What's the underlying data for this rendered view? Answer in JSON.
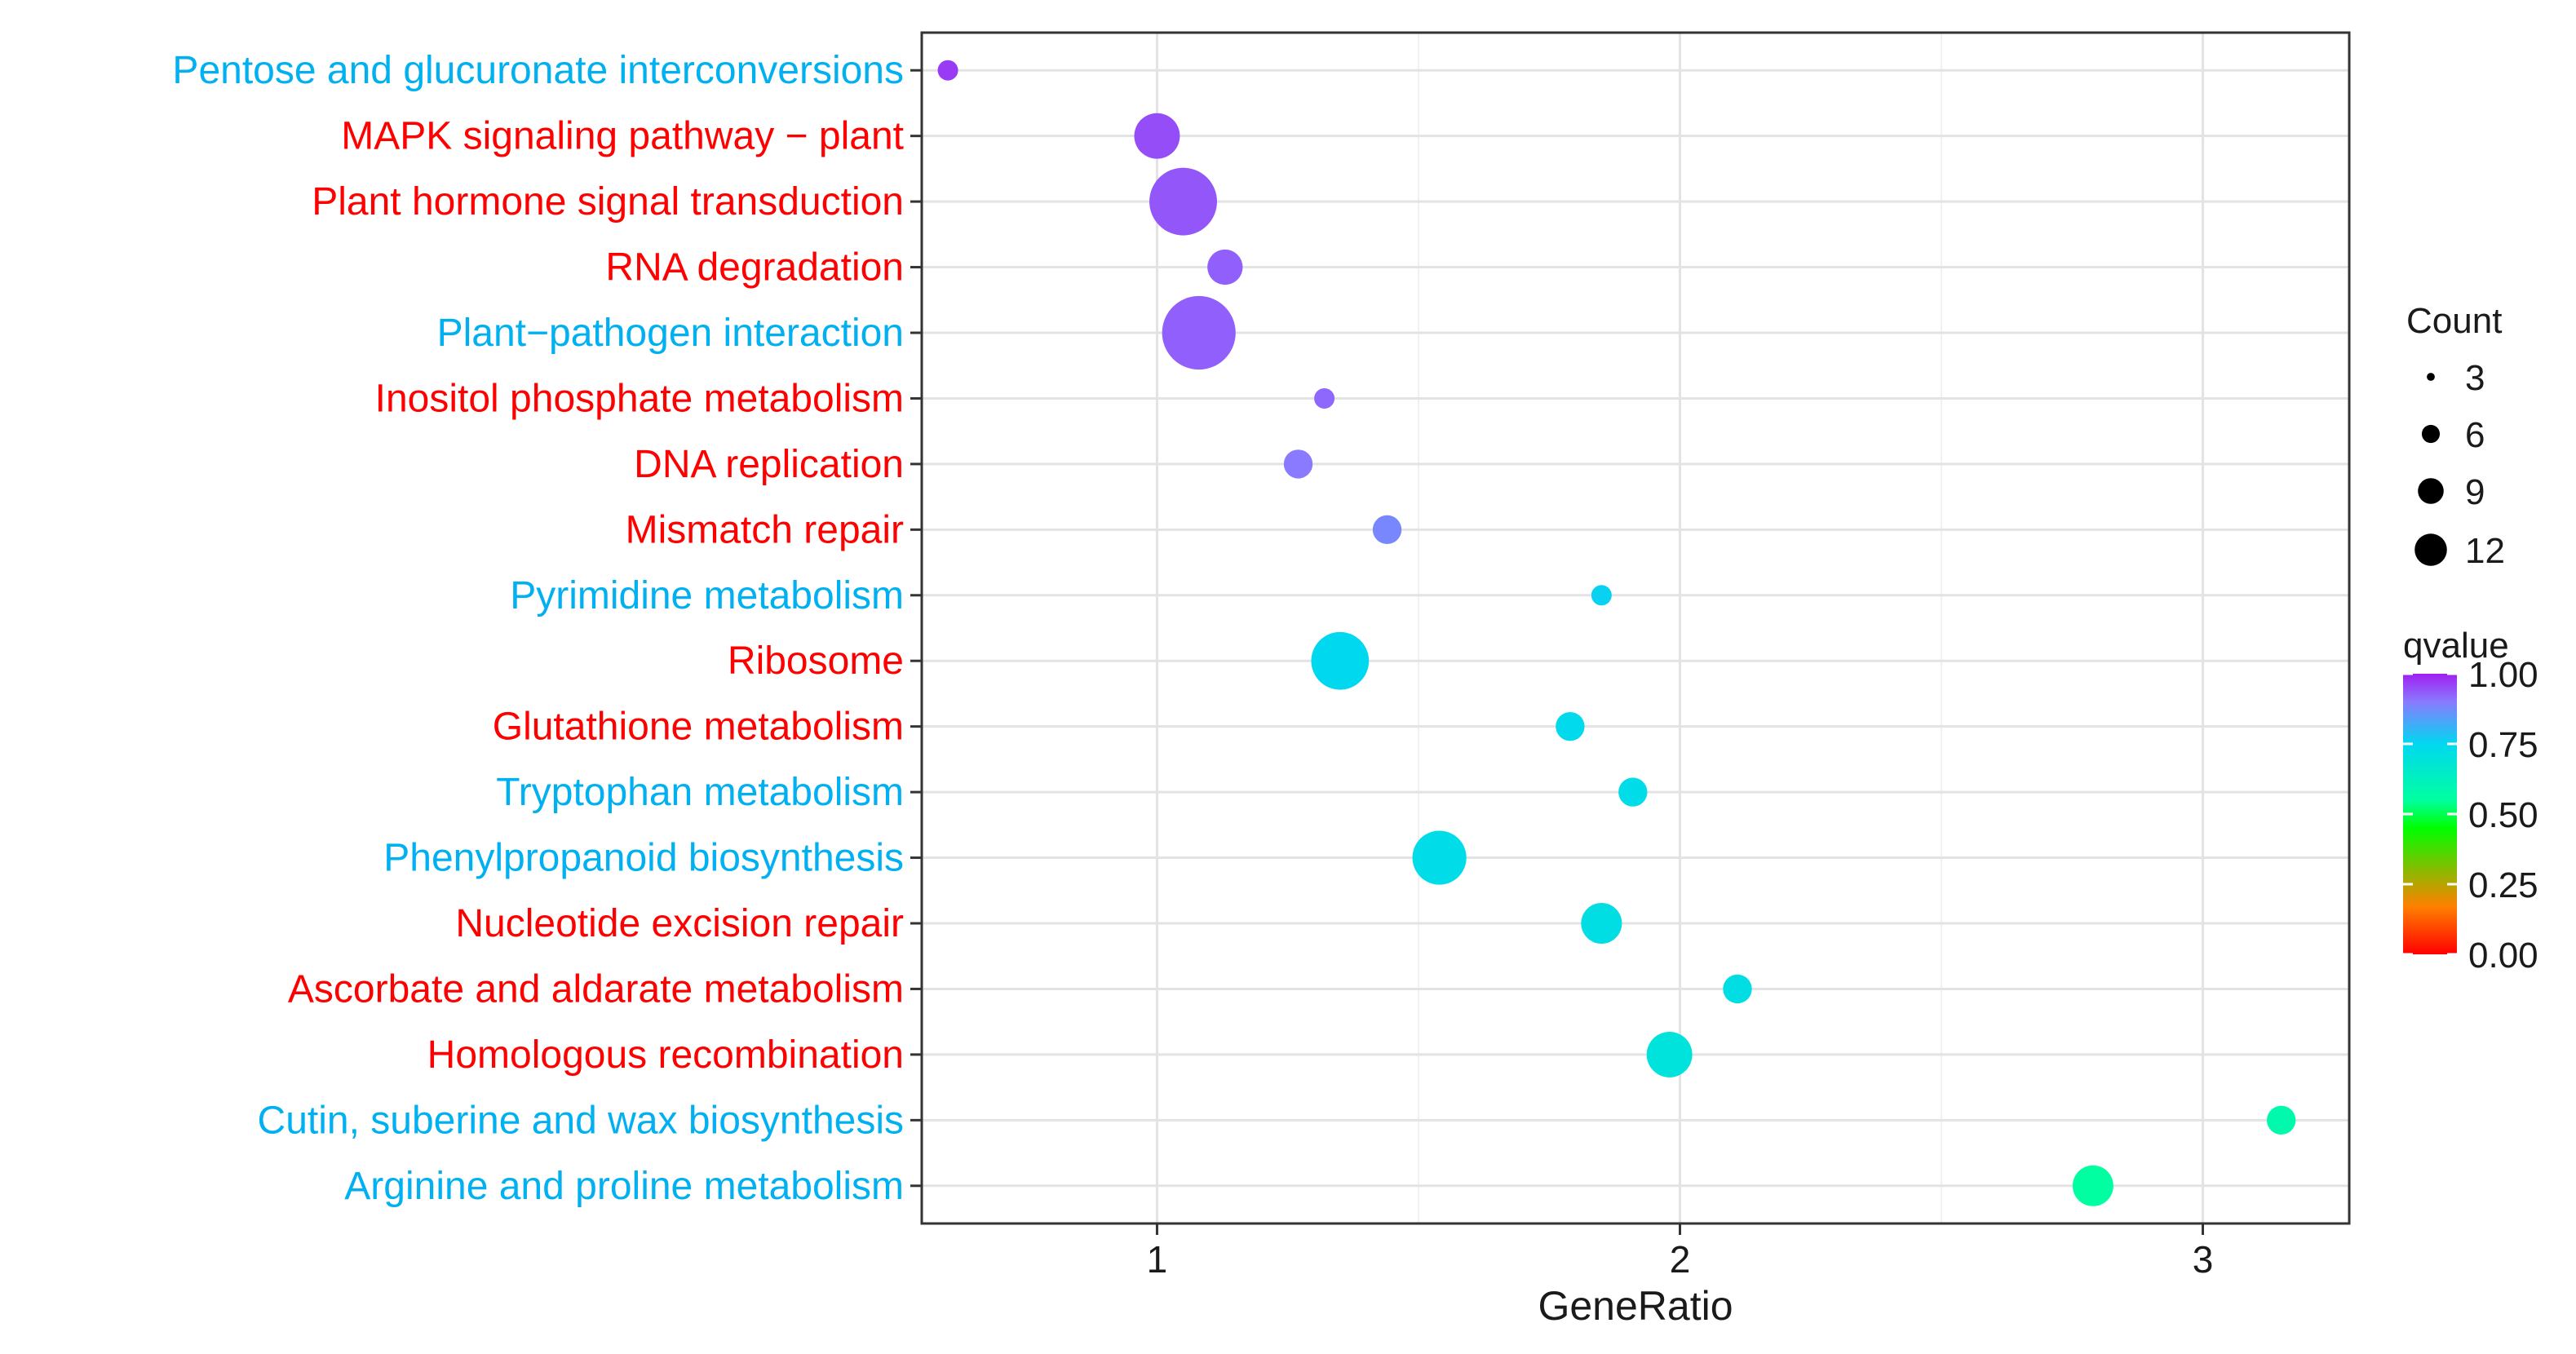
{
  "chart_data": {
    "type": "scatter",
    "title": "",
    "xlabel": "GeneRatio",
    "ylabel": "",
    "xlim": [
      0.55,
      3.28
    ],
    "x_ticks": [
      1,
      2,
      3
    ],
    "x_tick_labels": [
      "1",
      "2",
      "3"
    ],
    "grid": true,
    "legend_position": "right",
    "points": [
      {
        "term": "Pentose and glucuronate interconversions",
        "term_color": "#00b0f0",
        "x": 0.6,
        "count": 1,
        "qvalue": 0.97
      },
      {
        "term": "MAPK signaling pathway − plant",
        "term_color": "#ff0000",
        "x": 1.0,
        "count": 5,
        "qvalue": 0.95
      },
      {
        "term": "Plant hormone signal transduction",
        "term_color": "#ff0000",
        "x": 1.05,
        "count": 11,
        "qvalue": 0.94
      },
      {
        "term": "RNA degradation",
        "term_color": "#ff0000",
        "x": 1.13,
        "count": 3,
        "qvalue": 0.93
      },
      {
        "term": "Plant−pathogen interaction",
        "term_color": "#00b0f0",
        "x": 1.08,
        "count": 13,
        "qvalue": 0.93
      },
      {
        "term": "Inositol phosphate metabolism",
        "term_color": "#ff0000",
        "x": 1.32,
        "count": 1,
        "qvalue": 0.92
      },
      {
        "term": "DNA replication",
        "term_color": "#ff0000",
        "x": 1.27,
        "count": 2,
        "qvalue": 0.9
      },
      {
        "term": "Mismatch repair",
        "term_color": "#ff0000",
        "x": 1.44,
        "count": 2,
        "qvalue": 0.88
      },
      {
        "term": "Pyrimidine metabolism",
        "term_color": "#00b0f0",
        "x": 1.85,
        "count": 1,
        "qvalue": 0.76
      },
      {
        "term": "Ribosome",
        "term_color": "#ff0000",
        "x": 1.35,
        "count": 8,
        "qvalue": 0.75
      },
      {
        "term": "Glutathione metabolism",
        "term_color": "#ff0000",
        "x": 1.79,
        "count": 2,
        "qvalue": 0.74
      },
      {
        "term": "Tryptophan metabolism",
        "term_color": "#00b0f0",
        "x": 1.91,
        "count": 2,
        "qvalue": 0.73
      },
      {
        "term": "Phenylpropanoid biosynthesis",
        "term_color": "#00b0f0",
        "x": 1.54,
        "count": 7,
        "qvalue": 0.73
      },
      {
        "term": "Nucleotide excision repair",
        "term_color": "#ff0000",
        "x": 1.85,
        "count": 4,
        "qvalue": 0.72
      },
      {
        "term": "Ascorbate and aldarate metabolism",
        "term_color": "#ff0000",
        "x": 2.11,
        "count": 2,
        "qvalue": 0.72
      },
      {
        "term": "Homologous recombination",
        "term_color": "#ff0000",
        "x": 1.98,
        "count": 5,
        "qvalue": 0.7
      },
      {
        "term": "Cutin, suberine and wax biosynthesis",
        "term_color": "#00b0f0",
        "x": 3.15,
        "count": 2,
        "qvalue": 0.58
      },
      {
        "term": "Arginine and proline metabolism",
        "term_color": "#00b0f0",
        "x": 2.79,
        "count": 4,
        "qvalue": 0.55
      }
    ],
    "size_legend": {
      "title": "Count",
      "values": [
        3,
        6,
        9,
        12
      ],
      "labels": [
        "3",
        "6",
        "9",
        "12"
      ]
    },
    "color_legend": {
      "title": "qvalue",
      "range": [
        0,
        1
      ],
      "ticks": [
        1.0,
        0.75,
        0.5,
        0.25,
        0.0
      ],
      "tick_labels": [
        "1.00",
        "0.75",
        "0.50",
        "0.25",
        "0.00"
      ],
      "colors": [
        "#ff0000",
        "#ff8000",
        "#00ff00",
        "#00ffa0",
        "#00d8f0",
        "#8a7aff",
        "#a020f0"
      ]
    }
  }
}
